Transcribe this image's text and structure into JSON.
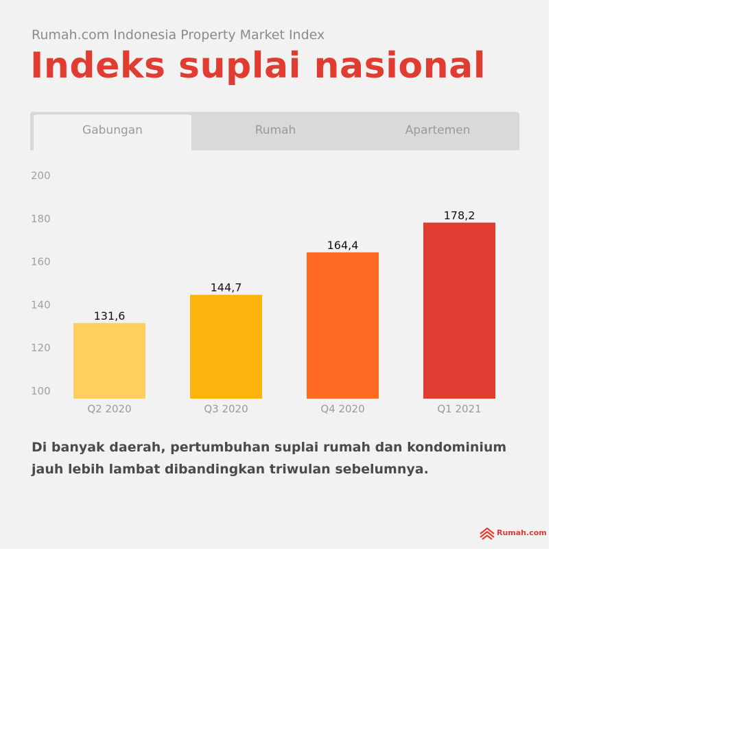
{
  "header": {
    "subtitle": "Rumah.com Indonesia Property Market Index",
    "title": "Indeks suplai nasional"
  },
  "tabs": [
    {
      "label": "Gabungan",
      "active": true
    },
    {
      "label": "Rumah",
      "active": false
    },
    {
      "label": "Apartemen",
      "active": false
    }
  ],
  "chart_data": {
    "type": "bar",
    "categories": [
      "Q2 2020",
      "Q3 2020",
      "Q4 2020",
      "Q1 2021"
    ],
    "values": [
      131.6,
      144.7,
      164.4,
      178.2
    ],
    "value_labels": [
      "131,6",
      "144,7",
      "164,4",
      "178,2"
    ],
    "bar_colors": [
      "#fecf5e",
      "#fbb40c",
      "#fe6a21",
      "#e03c31"
    ],
    "ylim": [
      100,
      200
    ],
    "yticks": [
      100,
      120,
      140,
      160,
      180,
      200
    ],
    "ytick_labels": [
      "100",
      "120",
      "140",
      "160",
      "180",
      "200"
    ],
    "grid": false,
    "legend": "none"
  },
  "note": "Di banyak daerah, pertumbuhan suplai rumah dan kondominium jauh lebih lambat dibandingkan triwulan sebelumnya.",
  "brand": {
    "name": "Rumah.com",
    "icon": "rumah-logo-icon",
    "color": "#e03c31"
  }
}
